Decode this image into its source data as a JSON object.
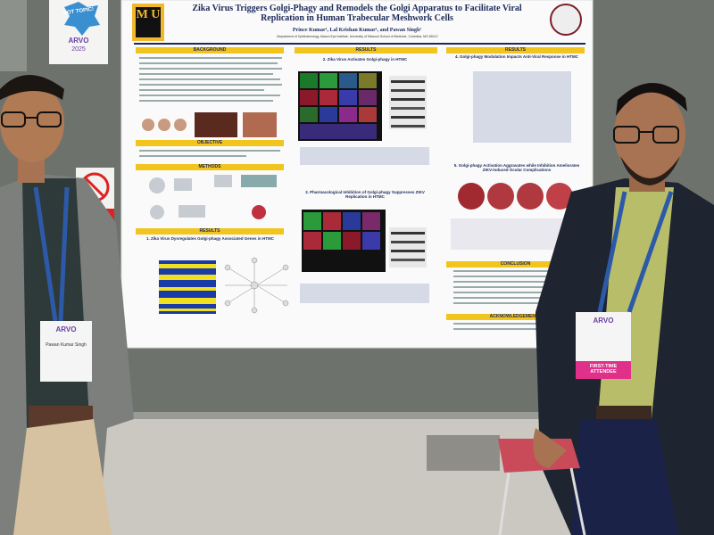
{
  "sign": {
    "top": "HOT TOPIC!",
    "event": "ARVO",
    "year": "2025"
  },
  "poster": {
    "logo": "M U",
    "title": "Zika Virus Triggers Golgi-Phagy and Remodels the Golgi Apparatus to Facilitate Viral Replication in Human Trabecular Meshwork Cells",
    "authors": "Prince Kumar¹, Lal Krishan Kumar¹, and Pawan Singh¹",
    "affiliation": "¹Department of Ophthalmology, Mason Eye Institute, University of Missouri School of Medicine, Columbia, MO 65212",
    "headings": [
      "BACKGROUND",
      "OBJECTIVE",
      "METHODS",
      "RESULTS",
      "RESULTS",
      "RESULTS",
      "CONCLUSION",
      "ACKNOWLEDGEMENTS"
    ],
    "panels": [
      "1. Zika Virus Dysregulates Golgi-phagy Associated Genes in HTMC",
      "2. Zika Virus Activates Golgi-phagy in HTMC",
      "3. Pharmacological Inhibition of Golgi-phagy Suppresses ZIKV Replication in HTMC",
      "4. Golgi-phagy Modulation Impacts Anti-Viral Response in HTMC",
      "5. Golgi-phagy Activation Aggravates while Inhibition Ameliorates ZIKV-induced Ocular Complications"
    ]
  },
  "badges": {
    "left_event": "ARVO",
    "left_name": "Pawan Kumar Singh",
    "right_event": "ARVO",
    "right_ribbon": "FIRST-TIME ATTENDEE"
  }
}
